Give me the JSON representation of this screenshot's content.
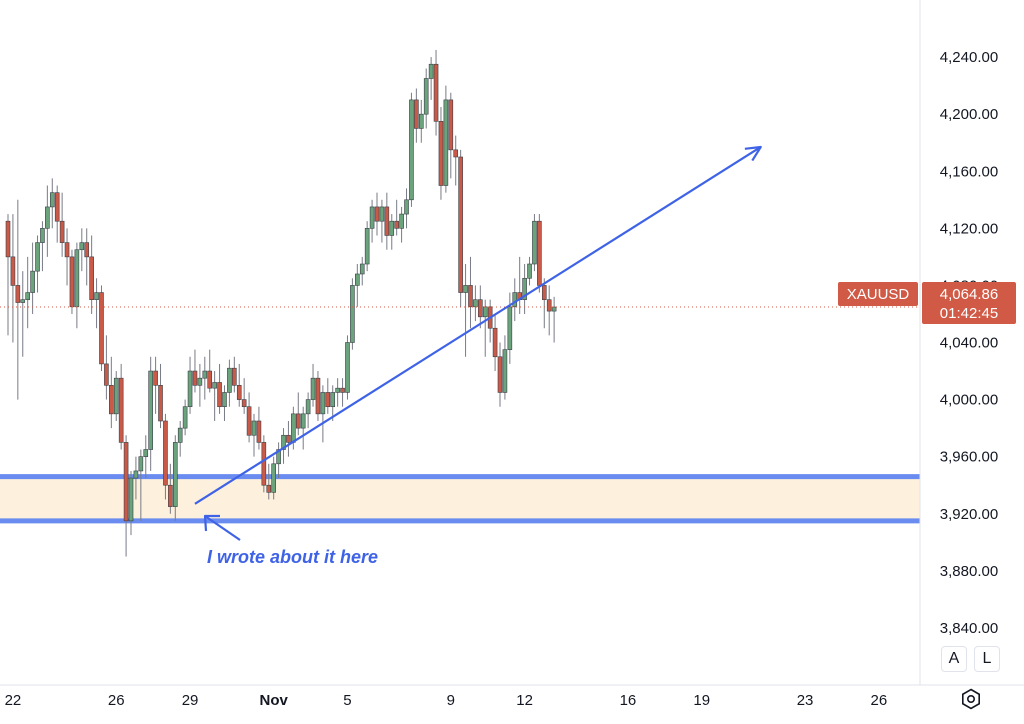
{
  "symbol": "XAUUSD",
  "last_price": "4,064.86",
  "countdown": "01:42:45",
  "annotation": "I wrote about it here",
  "buttons": {
    "auto": "A",
    "log": "L"
  },
  "colors": {
    "up": "#6aa37c",
    "down": "#c95a48",
    "trendline": "#3f63e6",
    "zone_fill": "#fdf0dc",
    "zone_line": "#6a8cf0",
    "tag_bg": "#d05a45"
  },
  "icons": {
    "settings": "settings-icon"
  },
  "chart_data": {
    "type": "candlestick",
    "y_axis": {
      "min": 3800,
      "max": 4280
    },
    "y_ticks": [
      {
        "value": 4240,
        "label": "4,240.00"
      },
      {
        "value": 4200,
        "label": "4,200.00"
      },
      {
        "value": 4160,
        "label": "4,160.00"
      },
      {
        "value": 4120,
        "label": "4,120.00"
      },
      {
        "value": 4080,
        "label": "4,080.00"
      },
      {
        "value": 4040,
        "label": "4,040.00"
      },
      {
        "value": 4000,
        "label": "4,000.00"
      },
      {
        "value": 3960,
        "label": "3,960.00"
      },
      {
        "value": 3920,
        "label": "3,920.00"
      },
      {
        "value": 3880,
        "label": "3,880.00"
      },
      {
        "value": 3840,
        "label": "3,840.00"
      }
    ],
    "x_ticks": [
      {
        "label": "22",
        "bar": 1
      },
      {
        "label": "26",
        "bar": 22
      },
      {
        "label": "29",
        "bar": 37
      },
      {
        "label": "Nov",
        "bar": 54,
        "bold": true
      },
      {
        "label": "5",
        "bar": 69
      },
      {
        "label": "9",
        "bar": 90
      },
      {
        "label": "12",
        "bar": 105
      },
      {
        "label": "16",
        "bar": 126
      },
      {
        "label": "19",
        "bar": 141
      },
      {
        "label": "23",
        "bar": 162
      },
      {
        "label": "26",
        "bar": 177
      }
    ],
    "support_zone": {
      "top": 3946,
      "bottom": 3915
    },
    "trendline": {
      "start": {
        "bar": 38,
        "price": 3927
      },
      "end": {
        "bar": 153,
        "price": 4177
      }
    },
    "current_price": 4064.86,
    "candles": [
      [
        4125,
        4130,
        4045,
        4100
      ],
      [
        4100,
        4130,
        4040,
        4080
      ],
      [
        4080,
        4140,
        4000,
        4068
      ],
      [
        4068,
        4090,
        4030,
        4070
      ],
      [
        4070,
        4100,
        4050,
        4075
      ],
      [
        4075,
        4110,
        4060,
        4090
      ],
      [
        4090,
        4115,
        4075,
        4110
      ],
      [
        4110,
        4125,
        4090,
        4120
      ],
      [
        4120,
        4150,
        4100,
        4135
      ],
      [
        4135,
        4155,
        4120,
        4145
      ],
      [
        4145,
        4150,
        4110,
        4125
      ],
      [
        4125,
        4145,
        4100,
        4110
      ],
      [
        4110,
        4120,
        4080,
        4100
      ],
      [
        4100,
        4105,
        4060,
        4065
      ],
      [
        4065,
        4110,
        4050,
        4105
      ],
      [
        4105,
        4120,
        4090,
        4110
      ],
      [
        4110,
        4120,
        4080,
        4100
      ],
      [
        4100,
        4115,
        4060,
        4070
      ],
      [
        4070,
        4085,
        4050,
        4075
      ],
      [
        4075,
        4080,
        4020,
        4025
      ],
      [
        4025,
        4045,
        4000,
        4010
      ],
      [
        4010,
        4030,
        3980,
        3990
      ],
      [
        3990,
        4020,
        3985,
        4015
      ],
      [
        4015,
        4025,
        3965,
        3970
      ],
      [
        3970,
        3975,
        3890,
        3915
      ],
      [
        3915,
        3950,
        3905,
        3945
      ],
      [
        3945,
        3960,
        3930,
        3950
      ],
      [
        3950,
        3965,
        3915,
        3960
      ],
      [
        3960,
        3975,
        3945,
        3965
      ],
      [
        3965,
        4030,
        3950,
        4020
      ],
      [
        4020,
        4030,
        3990,
        4010
      ],
      [
        4010,
        4025,
        3980,
        3985
      ],
      [
        3985,
        3990,
        3930,
        3940
      ],
      [
        3940,
        3955,
        3920,
        3925
      ],
      [
        3925,
        3975,
        3915,
        3970
      ],
      [
        3970,
        3985,
        3960,
        3980
      ],
      [
        3980,
        4000,
        3975,
        3995
      ],
      [
        3995,
        4030,
        3990,
        4020
      ],
      [
        4020,
        4035,
        4005,
        4010
      ],
      [
        4010,
        4025,
        3995,
        4015
      ],
      [
        4015,
        4030,
        4000,
        4020
      ],
      [
        4020,
        4035,
        4005,
        4008
      ],
      [
        4008,
        4020,
        3985,
        4012
      ],
      [
        4012,
        4025,
        3990,
        3995
      ],
      [
        3995,
        4010,
        3985,
        4005
      ],
      [
        4005,
        4028,
        3995,
        4022
      ],
      [
        4022,
        4030,
        4005,
        4010
      ],
      [
        4010,
        4025,
        3995,
        4000
      ],
      [
        4000,
        4015,
        3990,
        3995
      ],
      [
        3995,
        4005,
        3970,
        3975
      ],
      [
        3975,
        3990,
        3960,
        3985
      ],
      [
        3985,
        3995,
        3965,
        3970
      ],
      [
        3970,
        3975,
        3935,
        3940
      ],
      [
        3940,
        3955,
        3930,
        3935
      ],
      [
        3935,
        3960,
        3930,
        3955
      ],
      [
        3955,
        3970,
        3945,
        3965
      ],
      [
        3965,
        3980,
        3955,
        3975
      ],
      [
        3975,
        3985,
        3960,
        3970
      ],
      [
        3970,
        3995,
        3965,
        3990
      ],
      [
        3990,
        4005,
        3975,
        3980
      ],
      [
        3980,
        3995,
        3965,
        3990
      ],
      [
        3990,
        4005,
        3980,
        4000
      ],
      [
        4000,
        4025,
        3995,
        4015
      ],
      [
        4015,
        4020,
        3985,
        3990
      ],
      [
        3990,
        4010,
        3970,
        4005
      ],
      [
        4005,
        4015,
        3990,
        3995
      ],
      [
        3995,
        4010,
        3985,
        4005
      ],
      [
        4005,
        4015,
        3995,
        4008
      ],
      [
        4008,
        4015,
        3995,
        4005
      ],
      [
        4005,
        4045,
        4000,
        4040
      ],
      [
        4040,
        4085,
        4035,
        4080
      ],
      [
        4080,
        4095,
        4065,
        4088
      ],
      [
        4088,
        4100,
        4080,
        4095
      ],
      [
        4095,
        4125,
        4090,
        4120
      ],
      [
        4120,
        4140,
        4110,
        4135
      ],
      [
        4135,
        4145,
        4115,
        4125
      ],
      [
        4125,
        4140,
        4110,
        4135
      ],
      [
        4135,
        4145,
        4105,
        4115
      ],
      [
        4115,
        4130,
        4105,
        4125
      ],
      [
        4125,
        4140,
        4115,
        4120
      ],
      [
        4120,
        4135,
        4110,
        4130
      ],
      [
        4130,
        4148,
        4120,
        4140
      ],
      [
        4140,
        4215,
        4135,
        4210
      ],
      [
        4210,
        4218,
        4180,
        4190
      ],
      [
        4190,
        4210,
        4180,
        4200
      ],
      [
        4200,
        4232,
        4190,
        4225
      ],
      [
        4225,
        4240,
        4210,
        4235
      ],
      [
        4235,
        4245,
        4185,
        4195
      ],
      [
        4195,
        4205,
        4140,
        4150
      ],
      [
        4150,
        4220,
        4145,
        4210
      ],
      [
        4210,
        4215,
        4155,
        4175
      ],
      [
        4175,
        4185,
        4150,
        4170
      ],
      [
        4170,
        4175,
        4065,
        4075
      ],
      [
        4075,
        4095,
        4030,
        4080
      ],
      [
        4080,
        4100,
        4050,
        4065
      ],
      [
        4065,
        4080,
        4055,
        4070
      ],
      [
        4070,
        4080,
        4050,
        4058
      ],
      [
        4058,
        4070,
        4030,
        4065
      ],
      [
        4065,
        4070,
        4040,
        4050
      ],
      [
        4050,
        4060,
        4020,
        4030
      ],
      [
        4030,
        4040,
        3995,
        4005
      ],
      [
        4005,
        4045,
        4000,
        4035
      ],
      [
        4035,
        4075,
        4025,
        4065
      ],
      [
        4065,
        4085,
        4055,
        4075
      ],
      [
        4075,
        4100,
        4060,
        4070
      ],
      [
        4070,
        4095,
        4060,
        4085
      ],
      [
        4085,
        4100,
        4080,
        4095
      ],
      [
        4095,
        4130,
        4090,
        4125
      ],
      [
        4125,
        4130,
        4075,
        4080
      ],
      [
        4080,
        4085,
        4050,
        4070
      ],
      [
        4070,
        4080,
        4045,
        4062
      ],
      [
        4062,
        4072,
        4040,
        4064.86
      ]
    ]
  }
}
